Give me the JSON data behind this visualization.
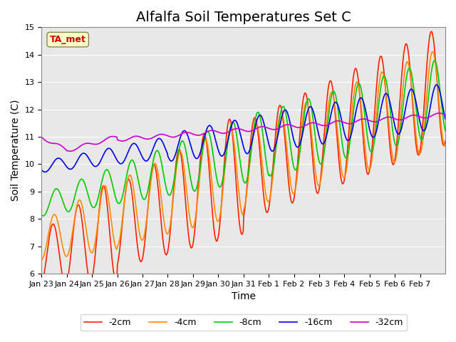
{
  "title": "Alfalfa Soil Temperatures Set C",
  "xlabel": "Time",
  "ylabel": "Soil Temperature (C)",
  "ylim": [
    6.0,
    15.0
  ],
  "yticks": [
    6.0,
    7.0,
    8.0,
    9.0,
    10.0,
    11.0,
    12.0,
    13.0,
    14.0,
    15.0
  ],
  "xtick_labels": [
    "Jan 23",
    "Jan 24",
    "Jan 25",
    "Jan 26",
    "Jan 27",
    "Jan 28",
    "Jan 29",
    "Jan 30",
    "Jan 31",
    "Feb 1",
    "Feb 2",
    "Feb 3",
    "Feb 4",
    "Feb 5",
    "Feb 6",
    "Feb 7"
  ],
  "legend_labels": [
    "-2cm",
    "-4cm",
    "-8cm",
    "-16cm",
    "-32cm"
  ],
  "colors": {
    "-2cm": "#FF2200",
    "-4cm": "#FF8C00",
    "-8cm": "#00CC00",
    "-16cm": "#0000EE",
    "-32cm": "#CC00CC"
  },
  "annotation_text": "TA_met",
  "annotation_bg": "#FFFFCC",
  "annotation_border": "#888844",
  "plot_bg": "#E8E8E8",
  "title_fontsize": 14,
  "axis_label_fontsize": 10,
  "tick_fontsize": 8,
  "legend_fontsize": 9
}
